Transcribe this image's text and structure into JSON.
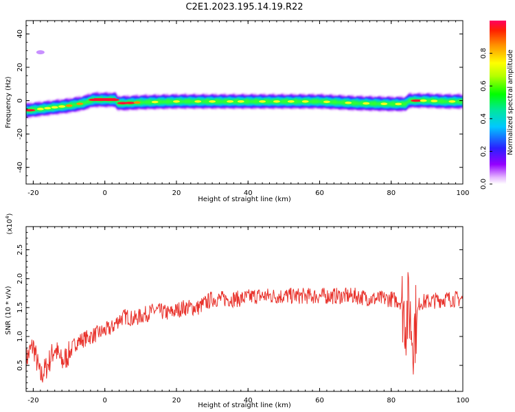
{
  "title": "C2E1.2023.195.14.19.R22",
  "colors": {
    "snr_line": "#e8312a",
    "axis": "#000000",
    "background": "#ffffff"
  },
  "chart_data": [
    {
      "type": "heatmap",
      "xlabel": "Height of straight line (km)",
      "ylabel": "Frequency (Hz)",
      "xlim": [
        -22,
        100
      ],
      "ylim": [
        -50,
        48
      ],
      "x_ticks": [
        "-20",
        "0",
        "20",
        "40",
        "60",
        "80",
        "100"
      ],
      "y_ticks": [
        "-40",
        "-20",
        "0",
        "20",
        "40"
      ],
      "colorbar": {
        "label": "Normalized spectral amplitude",
        "range": [
          0,
          1
        ],
        "ticks": [
          "0.0",
          "0.2",
          "0.4",
          "0.6",
          "0.8"
        ],
        "colormap": "rainbow (white-purple-blue-cyan-green-yellow-orange-red)"
      },
      "ridge_frequency": {
        "x": [
          -22,
          -18,
          -14,
          -10,
          -6,
          -4,
          -3,
          0,
          3,
          3.5,
          6,
          10,
          20,
          30,
          40,
          50,
          60,
          70,
          80,
          84,
          85,
          90,
          95,
          100
        ],
        "y": [
          -6,
          -5,
          -4,
          -3,
          -1.5,
          0,
          0.5,
          0.5,
          0.5,
          -1.5,
          -1.5,
          -1,
          -0.5,
          -0.5,
          -0.5,
          -0.5,
          -0.5,
          -1.5,
          -2,
          -2,
          0,
          0,
          -0.5,
          -0.5
        ]
      },
      "isolated_feature": {
        "x": -18,
        "y": 29
      }
    },
    {
      "type": "line",
      "xlabel": "Height of straight line (km)",
      "ylabel": "SNR (10 * v/v)",
      "y_multiplier": "(x10^4)",
      "xlim": [
        -22,
        100
      ],
      "ylim": [
        0.05,
        2.9
      ],
      "x_ticks": [
        "-20",
        "0",
        "20",
        "40",
        "60",
        "80",
        "100"
      ],
      "y_ticks": [
        "0.5",
        "1.0",
        "1.5",
        "2.0",
        "2.5"
      ],
      "series": [
        {
          "color": "#e8312a",
          "x": [
            -22,
            -20,
            -18,
            -16,
            -14,
            -12,
            -10,
            -8,
            -6,
            -4,
            -2,
            0,
            2,
            4,
            6,
            8,
            10,
            14,
            18,
            22,
            26,
            30,
            34,
            38,
            42,
            46,
            50,
            55,
            60,
            65,
            70,
            75,
            80,
            83,
            84,
            85,
            86,
            88,
            90,
            95,
            100
          ],
          "y": [
            0.6,
            0.85,
            0.3,
            0.5,
            0.8,
            0.55,
            0.7,
            0.9,
            0.95,
            1.0,
            1.05,
            1.1,
            1.15,
            1.3,
            1.35,
            1.3,
            1.35,
            1.45,
            1.4,
            1.5,
            1.5,
            1.65,
            1.65,
            1.65,
            1.7,
            1.7,
            1.7,
            1.7,
            1.7,
            1.7,
            1.7,
            1.65,
            1.65,
            1.6,
            1.3,
            1.5,
            1.0,
            1.6,
            1.6,
            1.65,
            1.65
          ]
        }
      ]
    }
  ]
}
